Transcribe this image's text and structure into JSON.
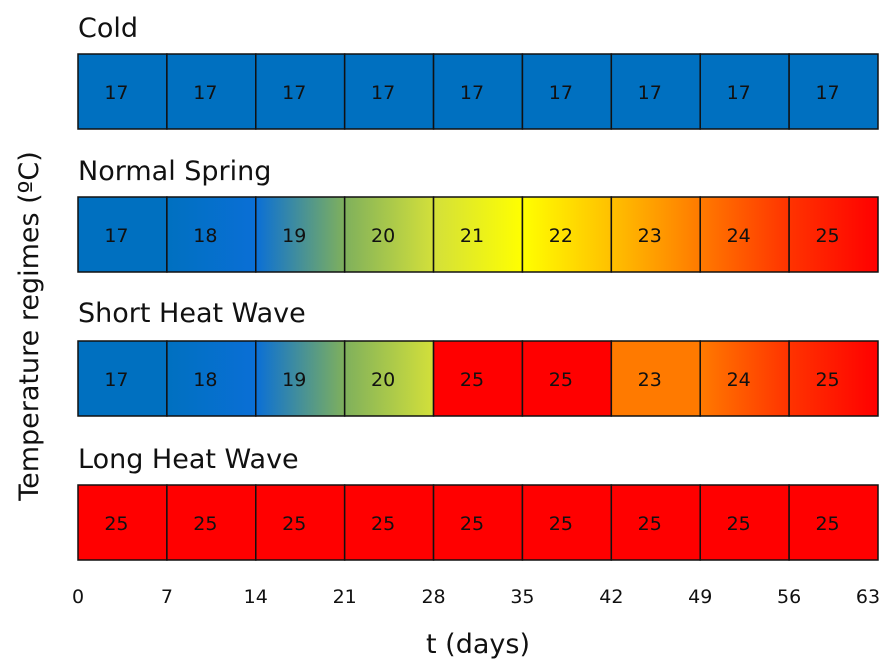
{
  "chart_data": {
    "type": "heatmap",
    "xlabel": "t (days)",
    "ylabel": "Temperature regimes (ºC)",
    "xticks": [
      "0",
      "7",
      "14",
      "21",
      "28",
      "35",
      "42",
      "49",
      "56",
      "63"
    ],
    "xlim": [
      0,
      63
    ],
    "color_scale": {
      "17": "#0070c0",
      "18": "#0a6fd6",
      "19": "#7fb05c",
      "20": "#d3e03a",
      "21": "#ffff00",
      "22": "#ffc000",
      "23": "#ff7a00",
      "24": "#ff3300",
      "25": "#ff0000"
    },
    "series": [
      {
        "name": "Cold",
        "values": [
          17,
          17,
          17,
          17,
          17,
          17,
          17,
          17,
          17
        ]
      },
      {
        "name": "Normal Spring",
        "values": [
          17,
          18,
          19,
          20,
          21,
          22,
          23,
          24,
          25
        ]
      },
      {
        "name": "Short Heat Wave",
        "values": [
          17,
          18,
          19,
          20,
          25,
          25,
          23,
          24,
          25
        ]
      },
      {
        "name": "Long Heat Wave",
        "values": [
          25,
          25,
          25,
          25,
          25,
          25,
          25,
          25,
          25
        ]
      }
    ]
  }
}
